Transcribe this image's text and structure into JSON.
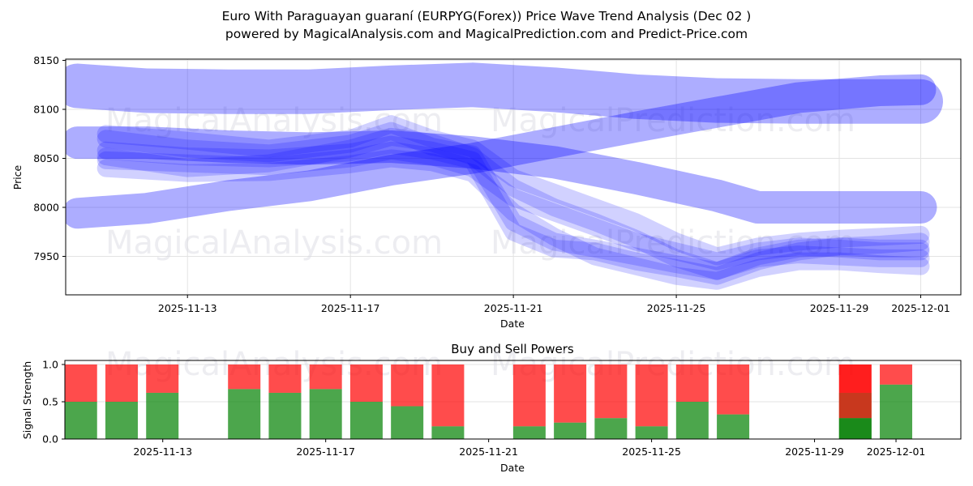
{
  "header": {
    "title_line1": "Euro With Paraguayan guaraní (EURPYG(Forex)) Price Wave Trend Analysis (Dec 02 )",
    "title_line2": "powered by MagicalAnalysis.com and MagicalPrediction.com and Predict-Price.com"
  },
  "watermarks": [
    "MagicalAnalysis.com",
    "MagicalPrediction.com"
  ],
  "colors": {
    "wave": "#0000ff",
    "buy": "#008000",
    "sell": "#ff0000",
    "grid": "#e3e3e3"
  },
  "chart_data": [
    {
      "type": "area",
      "title": "Price Wave Trend Analysis",
      "xlabel": "Date",
      "ylabel": "Price",
      "ylim": [
        7910,
        8150
      ],
      "yticks": [
        7950,
        8000,
        8050,
        8100,
        8150
      ],
      "xticks": [
        "2025-11-13",
        "2025-11-17",
        "2025-11-21",
        "2025-11-25",
        "2025-11-29",
        "2025-12-01"
      ],
      "grid": true,
      "x": [
        "2025-11-10",
        "2025-11-11",
        "2025-11-12",
        "2025-11-13",
        "2025-11-14",
        "2025-11-15",
        "2025-11-16",
        "2025-11-17",
        "2025-11-18",
        "2025-11-19",
        "2025-11-20",
        "2025-11-21",
        "2025-11-22",
        "2025-11-23",
        "2025-11-24",
        "2025-11-25",
        "2025-11-26",
        "2025-11-27",
        "2025-11-28",
        "2025-11-29",
        "2025-11-30",
        "2025-12-01"
      ],
      "series": [
        {
          "name": "wave-upper-band",
          "width": 55,
          "opacity": 0.32,
          "points": [
            [
              0.3,
              8124
            ],
            [
              2,
              8119
            ],
            [
              4,
              8118
            ],
            [
              6,
              8118
            ],
            [
              8,
              8122
            ],
            [
              10,
              8125
            ],
            [
              12,
              8120
            ],
            [
              14,
              8113
            ],
            [
              16,
              8109
            ],
            [
              18,
              8108
            ],
            [
              20,
              8108
            ],
            [
              21,
              8108
            ]
          ]
        },
        {
          "name": "wave-rising-band",
          "width": 38,
          "opacity": 0.32,
          "points": [
            [
              0.3,
              7994
            ],
            [
              2,
              7999
            ],
            [
              4,
              8012
            ],
            [
              6,
              8022
            ],
            [
              8,
              8038
            ],
            [
              10,
              8050
            ],
            [
              12,
              8066
            ],
            [
              14,
              8082
            ],
            [
              16,
              8097
            ],
            [
              18,
              8112
            ],
            [
              20,
              8119
            ],
            [
              21,
              8120
            ]
          ]
        },
        {
          "name": "wave-mid-band",
          "width": 40,
          "opacity": 0.32,
          "points": [
            [
              0.3,
              8066
            ],
            [
              2,
              8066
            ],
            [
              4,
              8062
            ],
            [
              6,
              8060
            ],
            [
              8,
              8062
            ],
            [
              10,
              8056
            ],
            [
              12,
              8046
            ],
            [
              14,
              8030
            ],
            [
              16,
              8012
            ],
            [
              17,
              8000
            ],
            [
              19,
              8000
            ],
            [
              21,
              8000
            ]
          ]
        },
        {
          "name": "wave-trace-1",
          "width": 22,
          "opacity": 0.18,
          "points": [
            [
              1,
              8070
            ],
            [
              3,
              8060
            ],
            [
              5,
              8055
            ],
            [
              7,
              8065
            ],
            [
              8,
              8078
            ],
            [
              9,
              8062
            ],
            [
              10,
              8054
            ],
            [
              11,
              7985
            ],
            [
              12,
              7965
            ],
            [
              13,
              7958
            ],
            [
              14,
              7950
            ],
            [
              15,
              7942
            ],
            [
              16,
              7935
            ],
            [
              17,
              7948
            ],
            [
              18,
              7952
            ],
            [
              19,
              7950
            ],
            [
              20,
              7948
            ],
            [
              21,
              7948
            ]
          ]
        },
        {
          "name": "wave-trace-2",
          "width": 22,
          "opacity": 0.18,
          "points": [
            [
              1,
              8058
            ],
            [
              3,
              8052
            ],
            [
              5,
              8050
            ],
            [
              7,
              8056
            ],
            [
              8,
              8064
            ],
            [
              9,
              8058
            ],
            [
              10,
              8048
            ],
            [
              11,
              7975
            ],
            [
              12,
              7958
            ],
            [
              13,
              7955
            ],
            [
              14,
              7945
            ],
            [
              15,
              7938
            ],
            [
              16,
              7930
            ],
            [
              17,
              7945
            ],
            [
              18,
              7955
            ],
            [
              19,
              7960
            ],
            [
              20,
              7962
            ],
            [
              21,
              7965
            ]
          ]
        },
        {
          "name": "wave-trace-3",
          "width": 22,
          "opacity": 0.18,
          "points": [
            [
              1,
              8048
            ],
            [
              3,
              8045
            ],
            [
              5,
              8042
            ],
            [
              7,
              8050
            ],
            [
              8,
              8058
            ],
            [
              9,
              8052
            ],
            [
              10,
              8040
            ],
            [
              11,
              8010
            ],
            [
              12,
              7995
            ],
            [
              13,
              7980
            ],
            [
              14,
              7965
            ],
            [
              15,
              7955
            ],
            [
              16,
              7945
            ],
            [
              17,
              7955
            ],
            [
              18,
              7960
            ],
            [
              19,
              7958
            ],
            [
              20,
              7955
            ],
            [
              21,
              7955
            ]
          ]
        },
        {
          "name": "wave-trace-4",
          "width": 22,
          "opacity": 0.18,
          "points": [
            [
              1,
              8040
            ],
            [
              3,
              8035
            ],
            [
              5,
              8036
            ],
            [
              7,
              8044
            ],
            [
              8,
              8050
            ],
            [
              9,
              8046
            ],
            [
              10,
              8035
            ],
            [
              11,
              7995
            ],
            [
              12,
              7970
            ],
            [
              13,
              7950
            ],
            [
              14,
              7940
            ],
            [
              15,
              7930
            ],
            [
              16,
              7925
            ],
            [
              17,
              7938
            ],
            [
              18,
              7945
            ],
            [
              19,
              7945
            ],
            [
              20,
              7942
            ],
            [
              21,
              7940
            ]
          ]
        },
        {
          "name": "wave-trace-5",
          "width": 22,
          "opacity": 0.18,
          "points": [
            [
              1,
              8075
            ],
            [
              3,
              8068
            ],
            [
              5,
              8060
            ],
            [
              7,
              8070
            ],
            [
              8,
              8085
            ],
            [
              9,
              8070
            ],
            [
              10,
              8060
            ],
            [
              11,
              8030
            ],
            [
              12,
              8015
            ],
            [
              13,
              8000
            ],
            [
              14,
              7985
            ],
            [
              15,
              7965
            ],
            [
              16,
              7950
            ],
            [
              17,
              7960
            ],
            [
              18,
              7965
            ],
            [
              19,
              7968
            ],
            [
              20,
              7970
            ],
            [
              21,
              7972
            ]
          ]
        },
        {
          "name": "wave-trace-6",
          "width": 22,
          "opacity": 0.18,
          "points": [
            [
              1,
              8052
            ],
            [
              3,
              8040
            ],
            [
              5,
              8045
            ],
            [
              7,
              8060
            ],
            [
              8,
              8072
            ],
            [
              9,
              8066
            ],
            [
              10,
              8052
            ],
            [
              11,
              8020
            ],
            [
              12,
              8000
            ],
            [
              13,
              7985
            ],
            [
              14,
              7968
            ],
            [
              15,
              7948
            ],
            [
              16,
              7935
            ],
            [
              17,
              7950
            ],
            [
              18,
              7958
            ],
            [
              19,
              7960
            ],
            [
              20,
              7958
            ],
            [
              21,
              7958
            ]
          ]
        }
      ]
    },
    {
      "type": "bar",
      "title": "Buy and Sell Powers",
      "xlabel": "Date",
      "ylabel": "Signal Strength",
      "ylim": [
        0,
        1.05
      ],
      "yticks": [
        "0.0",
        "0.5",
        "1.0"
      ],
      "xticks": [
        "2025-11-13",
        "2025-11-17",
        "2025-11-21",
        "2025-11-25",
        "2025-11-29",
        "2025-12-01"
      ],
      "categories": [
        "2025-11-11",
        "2025-11-12",
        "2025-11-13",
        "2025-11-15",
        "2025-11-16",
        "2025-11-17",
        "2025-11-18",
        "2025-11-19",
        "2025-11-20",
        "2025-11-22",
        "2025-11-23",
        "2025-11-24",
        "2025-11-25",
        "2025-11-26",
        "2025-11-27",
        "2025-11-30",
        "2025-12-01"
      ],
      "day_index": [
        1,
        2,
        3,
        5,
        6,
        7,
        8,
        9,
        10,
        12,
        13,
        14,
        15,
        16,
        17,
        20,
        21
      ],
      "series": [
        {
          "name": "Buy",
          "values": [
            0.5,
            0.5,
            0.62,
            0.67,
            0.62,
            0.67,
            0.5,
            0.44,
            0.17,
            0.17,
            0.22,
            0.28,
            0.17,
            0.5,
            0.33,
            0.28,
            0.73
          ]
        },
        {
          "name": "Sell",
          "values": [
            0.5,
            0.5,
            0.38,
            0.33,
            0.38,
            0.33,
            0.5,
            0.56,
            0.83,
            0.83,
            0.78,
            0.72,
            0.83,
            0.5,
            0.67,
            0.72,
            0.27
          ]
        }
      ],
      "overlap_note": {
        "2025-11-30": {
          "mid_band_top": 0.62
        }
      }
    }
  ]
}
